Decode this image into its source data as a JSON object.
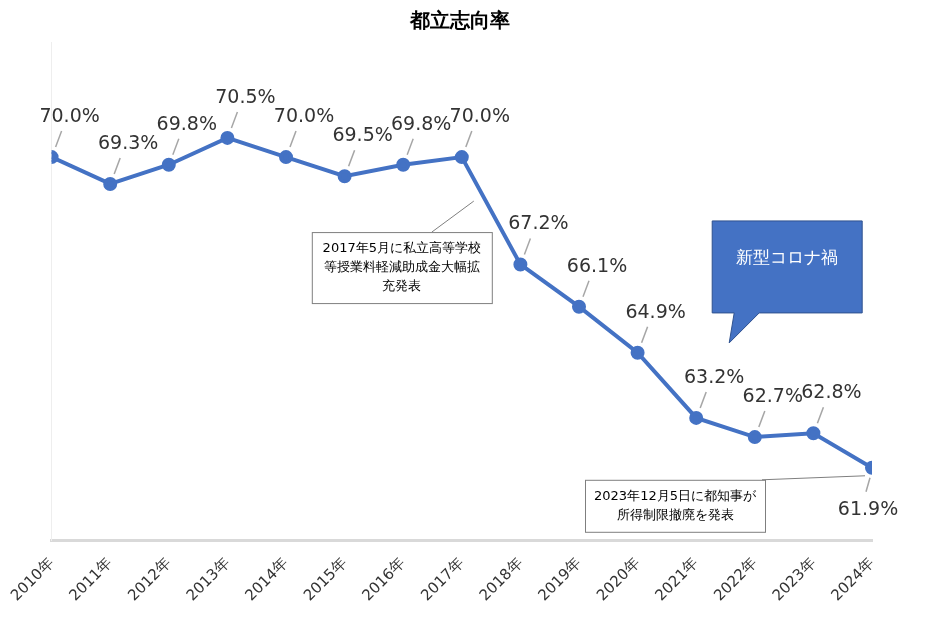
{
  "chart_data": {
    "type": "line",
    "title": "都立志向率",
    "categories": [
      "2010年",
      "2011年",
      "2012年",
      "2013年",
      "2014年",
      "2015年",
      "2016年",
      "2017年",
      "2018年",
      "2019年",
      "2020年",
      "2021年",
      "2022年",
      "2023年",
      "2024年"
    ],
    "values": [
      70.0,
      69.3,
      69.8,
      70.5,
      70.0,
      69.5,
      69.8,
      70.0,
      67.2,
      66.1,
      64.9,
      63.2,
      62.7,
      62.8,
      61.9
    ],
    "value_labels": [
      "70.0%",
      "69.3%",
      "69.8%",
      "70.5%",
      "70.0%",
      "69.5%",
      "69.8%",
      "70.0%",
      "67.2%",
      "66.1%",
      "64.9%",
      "63.2%",
      "62.7%",
      "62.8%",
      "61.9%"
    ],
    "color": "#4472c4",
    "marker": "circle",
    "data_labels": true,
    "grid": false,
    "tick_labels": "x",
    "ylim": [
      60,
      73
    ],
    "annotations": [
      {
        "text": "2017年5月に私立高等学校等授業料軽減助成金大幅拡充発表",
        "at": "2017年"
      },
      {
        "text": "新型コロナ禍",
        "at": "2021年"
      },
      {
        "text": "2023年12月5日に都知事が所得制限撤廃を発表",
        "at": "2024年"
      }
    ]
  }
}
